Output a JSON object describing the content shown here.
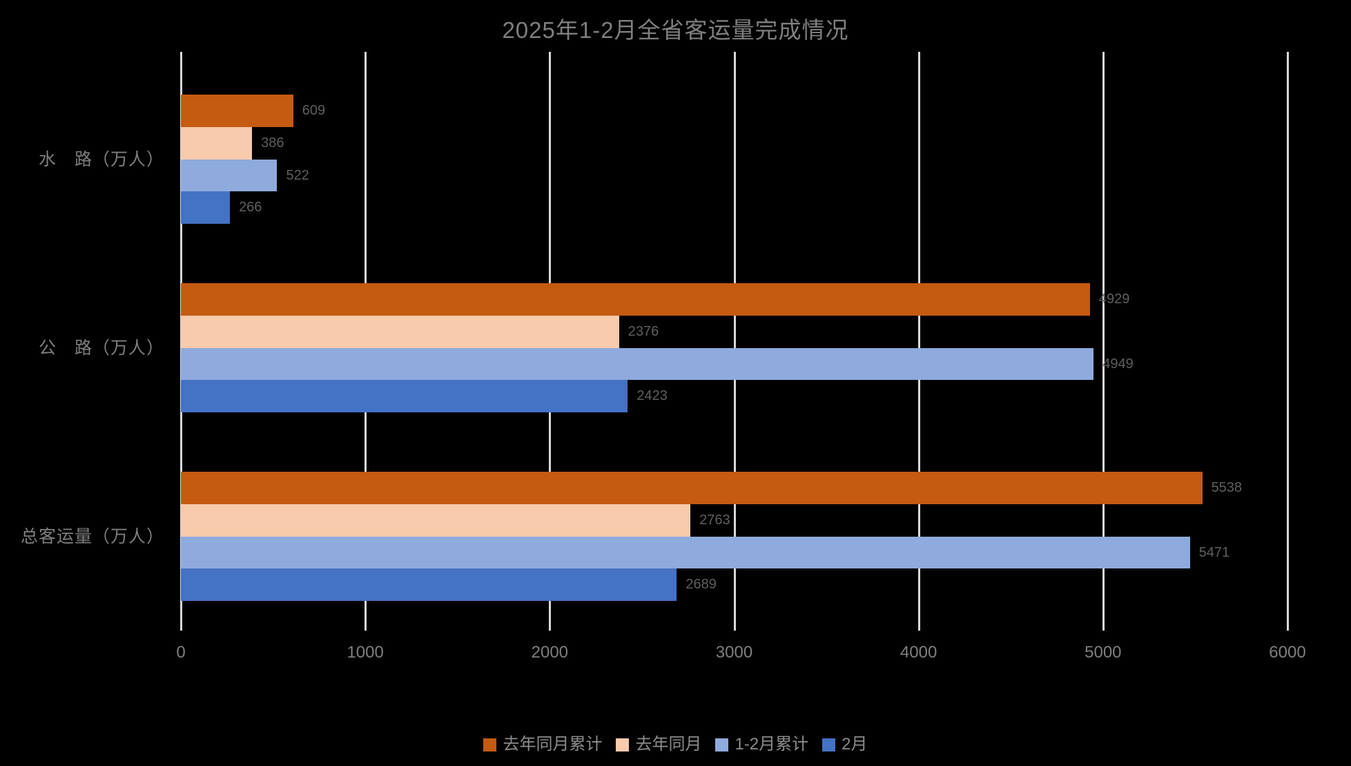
{
  "title": "2025年1-2月全省客运量完成情况",
  "chart_data": {
    "type": "bar",
    "orientation": "horizontal",
    "title": "2025年1-2月全省客运量完成情况",
    "categories": [
      "水　路（万人）",
      "公　路（万人）",
      "总客运量（万人）"
    ],
    "series": [
      {
        "name": "去年同月累计",
        "color": "#C55A11",
        "values": [
          609,
          4929,
          5538
        ]
      },
      {
        "name": "去年同月",
        "color": "#F8CBAD",
        "values": [
          386,
          2376,
          2763
        ]
      },
      {
        "name": "1-2月累计",
        "color": "#8FAADC",
        "values": [
          522,
          4949,
          5471
        ]
      },
      {
        "name": "2月",
        "color": "#4472C4",
        "values": [
          266,
          2423,
          2689
        ]
      }
    ],
    "xlabel": "",
    "ylabel": "",
    "xlim": [
      0,
      6000
    ],
    "x_ticks": [
      "0",
      "1000",
      "2000",
      "3000",
      "4000",
      "5000",
      "6000"
    ],
    "grid": true,
    "legend_position": "bottom",
    "data_labels": true,
    "colors": {
      "background": "#000000",
      "gridline": "#D9D9D9",
      "title_text": "#7F7F7F",
      "category_text": "#7F7F7F",
      "tick_text": "#7F7F7F",
      "value_text": "#5F5F5F",
      "legend_text": "#8C8C8C"
    }
  }
}
